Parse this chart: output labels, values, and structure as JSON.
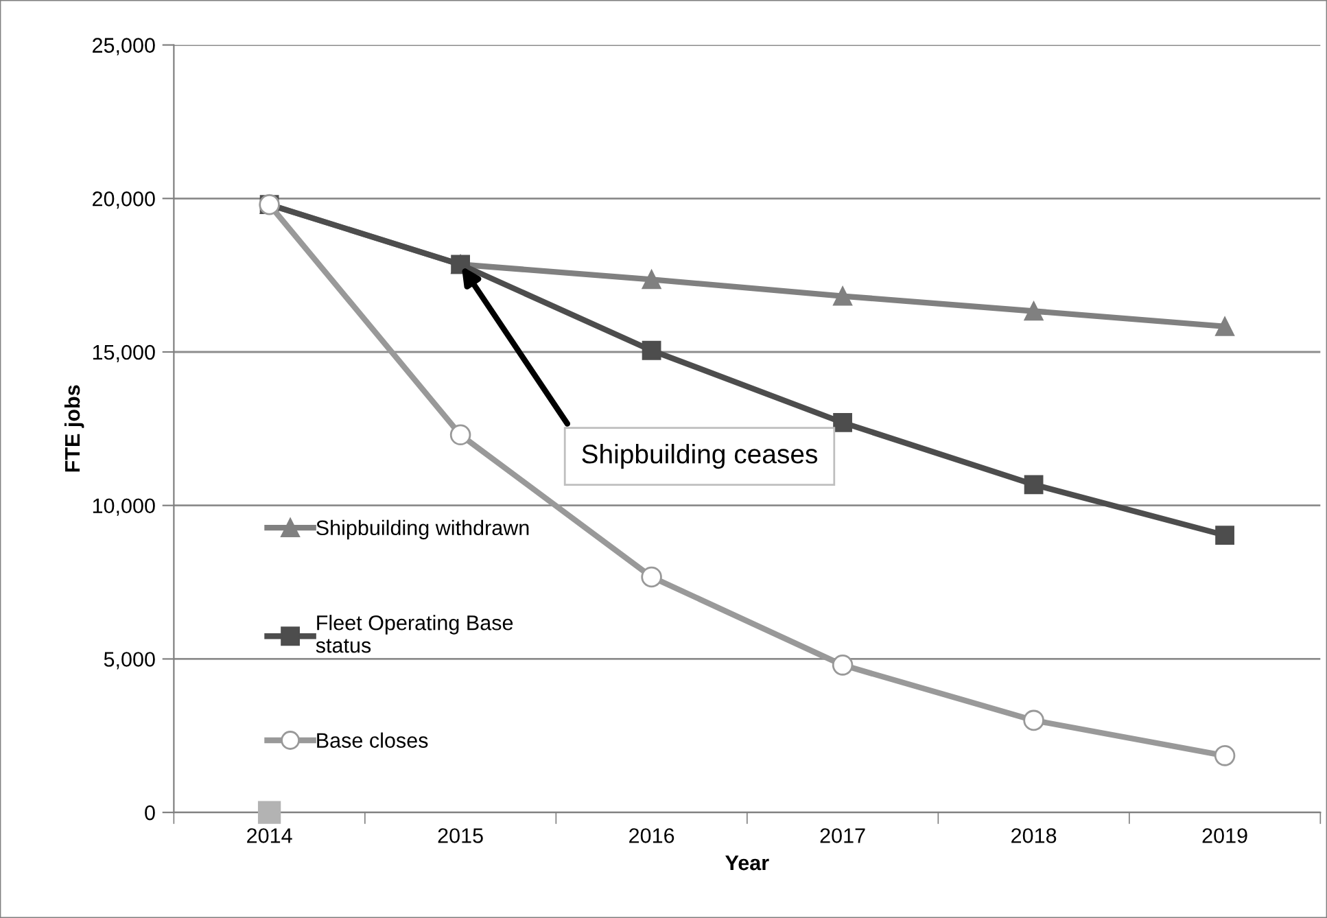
{
  "chart_data": {
    "type": "line",
    "xlabel": "Year",
    "ylabel": "FTE jobs",
    "categories": [
      "2014",
      "2015",
      "2016",
      "2017",
      "2018",
      "2019"
    ],
    "series": [
      {
        "name": "Shipbuilding withdrawn",
        "color": "#808080",
        "marker": "triangle",
        "values": [
          19800,
          17850,
          17360,
          16820,
          16330,
          15830
        ]
      },
      {
        "name": "Fleet Operating Base status",
        "color": "#4d4d4d",
        "marker": "square",
        "values": [
          19800,
          17850,
          15050,
          12700,
          10680,
          9030
        ]
      },
      {
        "name": "Base closes",
        "color": "#999999",
        "marker": "circle",
        "values": [
          19800,
          12300,
          7670,
          4800,
          3000,
          1850
        ]
      },
      {
        "type": "scatter",
        "color": "#b3b3b3",
        "marker": "square",
        "values": [
          0,
          null,
          null,
          null,
          null,
          null
        ]
      }
    ],
    "ylim": [
      0,
      25000
    ],
    "yticks": [
      {
        "value": 0,
        "label": "0"
      },
      {
        "value": 5000,
        "label": "5,000"
      },
      {
        "value": 10000,
        "label": "10,000"
      },
      {
        "value": 15000,
        "label": "15,000"
      },
      {
        "value": 20000,
        "label": "20,000"
      },
      {
        "value": 25000,
        "label": "25,000"
      }
    ],
    "grid": "y",
    "legend": "left",
    "annotations": [
      {
        "text": "Shipbuilding ceases",
        "x": "2015",
        "y": 17850
      }
    ]
  }
}
